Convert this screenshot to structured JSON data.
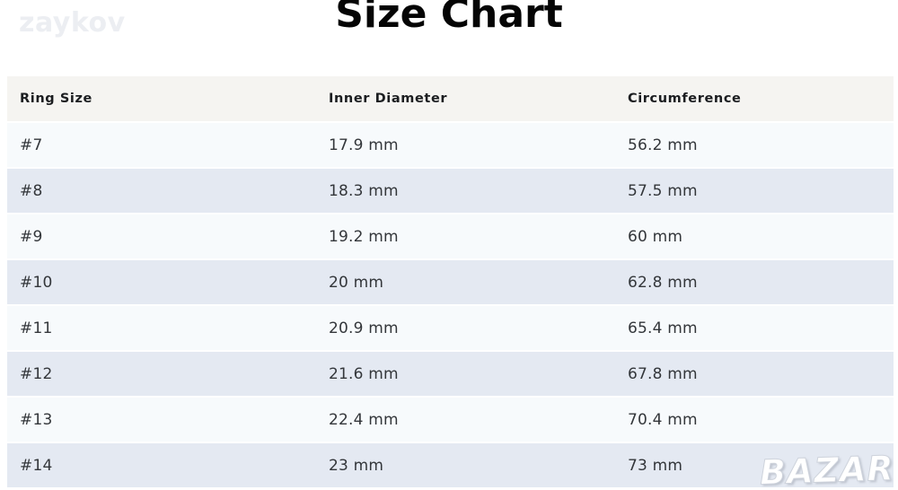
{
  "title": "Size Chart",
  "watermarks": {
    "top_left": "zaykov",
    "bottom_right": "BAZAR"
  },
  "colors": {
    "header_row_bg": "#f5f4f1",
    "row_odd_bg": "#f7fafc",
    "row_even_bg": "#e4e9f2",
    "title_color": "#050505",
    "body_text": "#33363a",
    "watermark_light": "#eceef2"
  },
  "chart_data": {
    "type": "table",
    "title": "Size Chart",
    "columns": [
      "Ring Size",
      "Inner Diameter",
      "Circumference"
    ],
    "rows": [
      [
        "#7",
        "17.9 mm",
        "56.2 mm"
      ],
      [
        "#8",
        "18.3 mm",
        "57.5 mm"
      ],
      [
        "#9",
        "19.2 mm",
        "60 mm"
      ],
      [
        "#10",
        "20 mm",
        "62.8 mm"
      ],
      [
        "#11",
        "20.9 mm",
        "65.4 mm"
      ],
      [
        "#12",
        "21.6 mm",
        "67.8 mm"
      ],
      [
        "#13",
        "22.4 mm",
        "70.4 mm"
      ],
      [
        "#14",
        "23 mm",
        "73 mm"
      ]
    ]
  }
}
